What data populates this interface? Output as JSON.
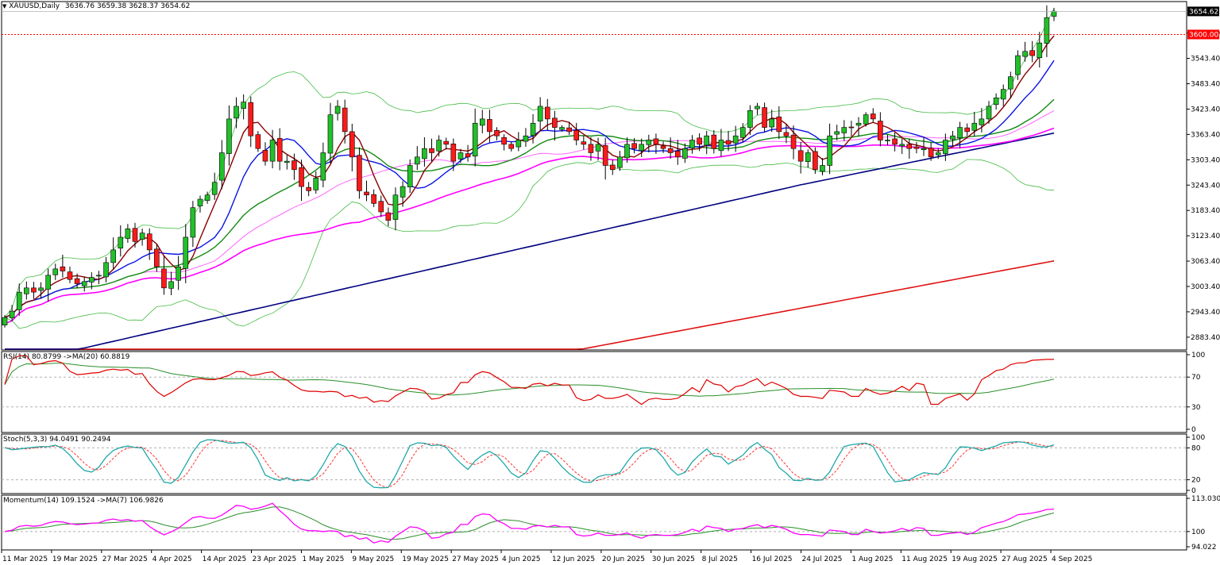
{
  "header": {
    "symbol": "XAUUSD,Daily",
    "ohlc": "3636.76 3659.38 3628.37 3654.62",
    "menu_icon": "triangle-down-icon"
  },
  "labels": {
    "current_price": "3654.62",
    "level_price": "3600.00"
  },
  "indicators": {
    "rsi_title": "RSI(14) 80.8799  ->MA(20) 60.8819",
    "stoch_title": "Stoch(5,3,3) 94.0491 90.2494",
    "momentum_title": "Momentum(14) 109.1524  ->MA(7) 106.9826"
  },
  "colors": {
    "bull": "#22c02a",
    "bear": "#ff1a1a",
    "ma_brown": "#8b0000",
    "ma_blue": "#0a14e6",
    "ma_green": "#118a11",
    "ma_pink_light": "#ff66ff",
    "ma_magenta": "#ff00ff",
    "ma_navy": "#00007f",
    "ma_red": "#e01010",
    "bollinger": "#44bb44",
    "rsi": "#e00000",
    "rsi_ma": "#2a8f2a",
    "stoch_main": "#20a8a8",
    "stoch_signal": "#ff3030",
    "momentum": "#ff00ff",
    "momentum_ma": "#2a8f2a"
  },
  "chart_data": [
    {
      "type": "candlestick",
      "ylim": [
        2855,
        3676
      ],
      "y_ticks": [
        "3603.40",
        "3543.40",
        "3483.40",
        "3423.40",
        "3363.40",
        "3303.40",
        "3243.40",
        "3183.40",
        "3123.40",
        "3063.40",
        "3003.40",
        "2943.40",
        "2883.40"
      ],
      "x_ticks": [
        "11 Mar 2025",
        "19 Mar 2025",
        "27 Mar 2025",
        "4 Apr 2025",
        "14 Apr 2025",
        "23 Apr 2025",
        "1 May 2025",
        "9 May 2025",
        "19 May 2025",
        "27 May 2025",
        "4 Jun 2025",
        "12 Jun 2025",
        "20 Jun 2025",
        "30 Jun 2025",
        "8 Jul 2025",
        "16 Jul 2025",
        "24 Jul 2025",
        "1 Aug 2025",
        "11 Aug 2025",
        "19 Aug 2025",
        "27 Aug 2025",
        "4 Sep 2025"
      ],
      "horizontal_levels": [
        3600.0,
        3654.62
      ],
      "close": [
        2930,
        2945,
        2990,
        3000,
        2990,
        3000,
        3030,
        3045,
        3040,
        3020,
        3010,
        3015,
        3025,
        3030,
        3060,
        3090,
        3120,
        3140,
        3110,
        3130,
        3090,
        3050,
        3000,
        3015,
        3050,
        3120,
        3190,
        3210,
        3220,
        3250,
        3320,
        3400,
        3430,
        3440,
        3360,
        3330,
        3300,
        3350,
        3300,
        3300,
        3280,
        3240,
        3230,
        3260,
        3320,
        3410,
        3430,
        3370,
        3310,
        3230,
        3220,
        3200,
        3180,
        3160,
        3220,
        3240,
        3290,
        3310,
        3330,
        3320,
        3350,
        3340,
        3300,
        3320,
        3310,
        3390,
        3400,
        3370,
        3360,
        3340,
        3330,
        3350,
        3360,
        3390,
        3430,
        3400,
        3380,
        3380,
        3370,
        3350,
        3340,
        3320,
        3340,
        3290,
        3280,
        3310,
        3340,
        3330,
        3340,
        3350,
        3340,
        3330,
        3320,
        3310,
        3330,
        3350,
        3340,
        3360,
        3330,
        3350,
        3340,
        3360,
        3380,
        3420,
        3430,
        3380,
        3400,
        3370,
        3360,
        3330,
        3300,
        3320,
        3280,
        3290,
        3360,
        3370,
        3380,
        3380,
        3390,
        3410,
        3400,
        3350,
        3350,
        3340,
        3340,
        3330,
        3330,
        3330,
        3310,
        3320,
        3350,
        3360,
        3380,
        3370,
        3390,
        3400,
        3430,
        3450,
        3470,
        3500,
        3550,
        3560,
        3550,
        3580,
        3640,
        3655
      ],
      "series": [
        {
          "name": "RSI(14)",
          "ylim": [
            0,
            100
          ],
          "y_ticks": [
            "100",
            "70",
            "30",
            "0"
          ],
          "last": 80.8799
        },
        {
          "name": "Stoch(5,3,3)",
          "ylim": [
            0,
            100
          ],
          "y_ticks": [
            "100",
            "80",
            "20",
            "0"
          ],
          "last": 94.0491
        },
        {
          "name": "Momentum(14)",
          "ylim": [
            94.022,
            113.0307
          ],
          "y_ticks": [
            "113.0307",
            "100",
            "94.022"
          ],
          "last": 109.1524
        }
      ]
    }
  ]
}
